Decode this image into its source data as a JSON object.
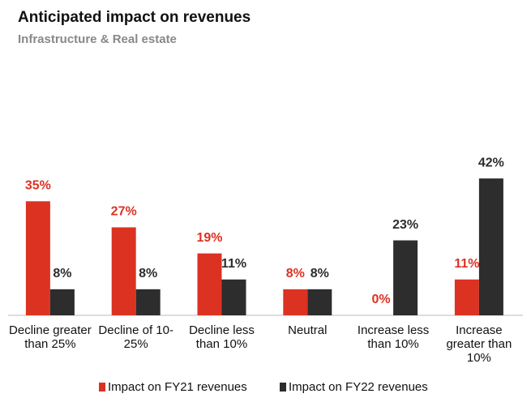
{
  "chart_data": {
    "type": "bar",
    "title": "Anticipated impact on revenues",
    "subtitle": "Infrastructure & Real estate",
    "categories": [
      "Decline greater than 25%",
      "Decline of 10-25%",
      "Decline less than 10%",
      "Neutral",
      "Increase less than 10%",
      "Increase greater than 10%"
    ],
    "series": [
      {
        "name": "Impact on FY21 revenues",
        "color": "#dc3222",
        "values": [
          35,
          27,
          19,
          8,
          0,
          11
        ],
        "value_labels": [
          "35%",
          "27%",
          "19%",
          "8%",
          "0%",
          "11%"
        ]
      },
      {
        "name": "Impact on FY22 revenues",
        "color": "#2d2d2d",
        "values": [
          8,
          8,
          11,
          8,
          23,
          42
        ],
        "value_labels": [
          "8%",
          "8%",
          "11%",
          "8%",
          "23%",
          "42%"
        ]
      }
    ]
  }
}
